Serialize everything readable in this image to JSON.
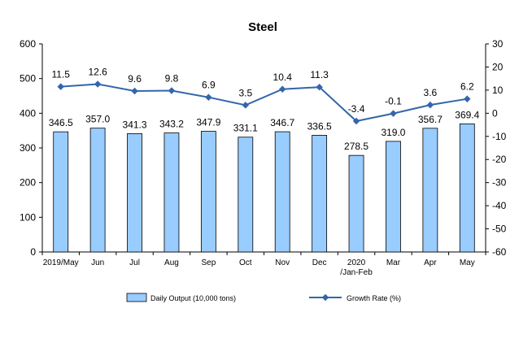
{
  "chart_data": {
    "type": "bar",
    "title": "Steel",
    "categories": [
      "2019/May",
      "Jun",
      "Jul",
      "Aug",
      "Sep",
      "Oct",
      "Nov",
      "Dec",
      "2020\n/Jan-Feb",
      "Mar",
      "Apr",
      "May"
    ],
    "series": [
      {
        "name": "Daily Output (10,000 tons)",
        "type": "bar",
        "axis": "left",
        "values": [
          346.5,
          357.0,
          341.3,
          343.2,
          347.9,
          331.1,
          346.7,
          336.5,
          278.5,
          319.0,
          356.7,
          369.4
        ],
        "labels": [
          "346.5",
          "357.0",
          "341.3",
          "343.2",
          "347.9",
          "331.1",
          "346.7",
          "336.5",
          "278.5",
          "319.0",
          "356.7",
          "369.4"
        ]
      },
      {
        "name": "Growth Rate (%)",
        "type": "line",
        "axis": "right",
        "values": [
          11.5,
          12.6,
          9.6,
          9.8,
          6.9,
          3.5,
          10.4,
          11.3,
          -3.4,
          -0.1,
          3.6,
          6.2
        ],
        "labels": [
          "11.5",
          "12.6",
          "9.6",
          "9.8",
          "6.9",
          "3.5",
          "10.4",
          "11.3",
          "-3.4",
          "-0.1",
          "3.6",
          "6.2"
        ]
      }
    ],
    "y_left": {
      "min": 0,
      "max": 600,
      "ticks": [
        "0",
        "100",
        "200",
        "300",
        "400",
        "500",
        "600"
      ]
    },
    "y_right": {
      "min": -60,
      "max": 30,
      "ticks": [
        "-60",
        "-50",
        "-40",
        "-30",
        "-20",
        "-10",
        "0",
        "10",
        "20",
        "30"
      ]
    },
    "grid": false,
    "legend_position": "bottom",
    "colors": {
      "bar_fill": "#99CCFF",
      "bar_stroke": "#000000",
      "line": "#3366AA",
      "axis": "#000000"
    }
  }
}
